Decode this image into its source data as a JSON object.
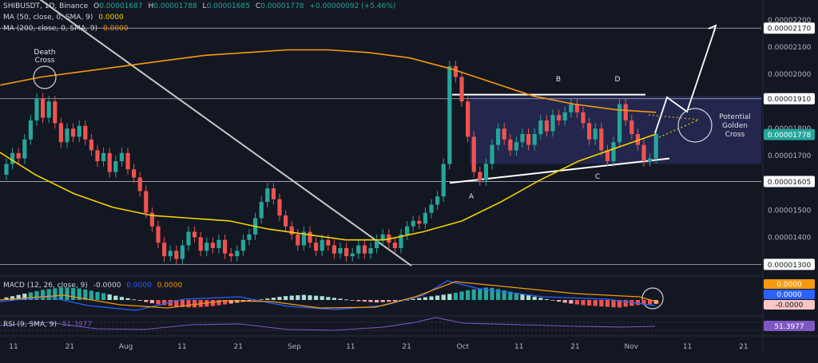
{
  "header": {
    "symbol": "SHIBUSDT, 1D, Binance",
    "o_label": "O",
    "o_value": "0.00001687",
    "h_label": "H",
    "h_value": "0.00001788",
    "l_label": "L",
    "l_value": "0.00001685",
    "c_label": "C",
    "c_value": "0.00001778",
    "change": "+0.00000092 (+5.46%)"
  },
  "ma50": {
    "label": "MA (50, close, 0, SMA, 9)",
    "value": "0.0000",
    "color": "#f5d300"
  },
  "ma200": {
    "label": "MA (200, close, 0, SMA, 9)",
    "value": "0.0000",
    "color": "#f59a0e"
  },
  "macd": {
    "label": "MACD (12, 26, close, 9)",
    "value1": "-0.0000",
    "value2": "0.0000",
    "value3": "0.0000"
  },
  "rsi": {
    "label": "RSI (9, SMA, 9)",
    "value": "51.3977",
    "badge": "51.3977",
    "color": "#7e57c2"
  },
  "annotations": {
    "death_cross": [
      "Death",
      "Cross"
    ],
    "golden_cross": [
      "Potential",
      "Golden",
      "Cross"
    ],
    "points": [
      "A",
      "B",
      "C",
      "D"
    ]
  },
  "colors": {
    "up": "#26a69a",
    "down": "#ef5350",
    "bg": "#131722",
    "rect": "#2a2d5c"
  },
  "chart_data": {
    "type": "candlestick",
    "symbol": "SHIBUSDT",
    "interval": "1D",
    "y_ticks": [
      "0.00002200",
      "0.00002100",
      "0.00002000",
      "0.00001900",
      "0.00001800",
      "0.00001700",
      "0.00001600",
      "0.00001500",
      "0.00001400",
      "0.00001300"
    ],
    "y_axis_badges": [
      {
        "label": "0.00002170",
        "value": 2.17e-05,
        "style": "line"
      },
      {
        "label": "0.00001910",
        "value": 1.91e-05,
        "style": "line"
      },
      {
        "label": "0.00001778",
        "value": 1.778e-05,
        "style": "current"
      },
      {
        "label": "0.00001605",
        "value": 1.605e-05,
        "style": "line"
      },
      {
        "label": "0.00001300",
        "value": 1.3e-05,
        "style": "line"
      }
    ],
    "x_ticks": [
      "11",
      "21",
      "Aug",
      "11",
      "21",
      "Sep",
      "11",
      "21",
      "Oct",
      "11",
      "21",
      "Nov",
      "11",
      "21"
    ],
    "ylim": [
      1.26e-05,
      2.25e-05
    ],
    "series": [
      {
        "name": "MA (50, close, 0, SMA, 9)",
        "color": "#f5d300"
      },
      {
        "name": "MA (200, close, 0, SMA, 9)",
        "color": "#f59a0e"
      }
    ],
    "candles": [
      [
        1.63e-05,
        1.67e-05
      ],
      [
        1.67e-05,
        1.71e-05
      ],
      [
        1.71e-05,
        1.69e-05
      ],
      [
        1.69e-05,
        1.76e-05
      ],
      [
        1.76e-05,
        1.83e-05
      ],
      [
        1.83e-05,
        1.91e-05
      ],
      [
        1.91e-05,
        1.84e-05
      ],
      [
        1.84e-05,
        1.9e-05
      ],
      [
        1.9e-05,
        1.82e-05
      ],
      [
        1.82e-05,
        1.75e-05
      ],
      [
        1.75e-05,
        1.8e-05
      ],
      [
        1.8e-05,
        1.77e-05
      ],
      [
        1.77e-05,
        1.81e-05
      ],
      [
        1.81e-05,
        1.76e-05
      ],
      [
        1.76e-05,
        1.72e-05
      ],
      [
        1.72e-05,
        1.68e-05
      ],
      [
        1.68e-05,
        1.71e-05
      ],
      [
        1.71e-05,
        1.64e-05
      ],
      [
        1.64e-05,
        1.68e-05
      ],
      [
        1.68e-05,
        1.71e-05
      ],
      [
        1.71e-05,
        1.65e-05
      ],
      [
        1.65e-05,
        1.62e-05
      ],
      [
        1.62e-05,
        1.57e-05
      ],
      [
        1.57e-05,
        1.49e-05
      ],
      [
        1.49e-05,
        1.44e-05
      ],
      [
        1.44e-05,
        1.38e-05
      ],
      [
        1.38e-05,
        1.33e-05
      ],
      [
        1.33e-05,
        1.35e-05
      ],
      [
        1.35e-05,
        1.32e-05
      ],
      [
        1.32e-05,
        1.37e-05
      ],
      [
        1.37e-05,
        1.42e-05
      ],
      [
        1.42e-05,
        1.4e-05
      ],
      [
        1.4e-05,
        1.35e-05
      ],
      [
        1.35e-05,
        1.38e-05
      ],
      [
        1.38e-05,
        1.36e-05
      ],
      [
        1.36e-05,
        1.39e-05
      ],
      [
        1.39e-05,
        1.34e-05
      ],
      [
        1.34e-05,
        1.33e-05
      ],
      [
        1.33e-05,
        1.35e-05
      ],
      [
        1.35e-05,
        1.39e-05
      ],
      [
        1.39e-05,
        1.41e-05
      ],
      [
        1.41e-05,
        1.47e-05
      ],
      [
        1.47e-05,
        1.53e-05
      ],
      [
        1.53e-05,
        1.58e-05
      ],
      [
        1.58e-05,
        1.54e-05
      ],
      [
        1.54e-05,
        1.48e-05
      ],
      [
        1.48e-05,
        1.44e-05
      ],
      [
        1.44e-05,
        1.41e-05
      ],
      [
        1.41e-05,
        1.37e-05
      ],
      [
        1.37e-05,
        1.42e-05
      ],
      [
        1.42e-05,
        1.38e-05
      ],
      [
        1.38e-05,
        1.35e-05
      ],
      [
        1.35e-05,
        1.39e-05
      ],
      [
        1.39e-05,
        1.37e-05
      ],
      [
        1.37e-05,
        1.34e-05
      ],
      [
        1.34e-05,
        1.36e-05
      ],
      [
        1.36e-05,
        1.33e-05
      ],
      [
        1.33e-05,
        1.34e-05
      ],
      [
        1.34e-05,
        1.37e-05
      ],
      [
        1.37e-05,
        1.34e-05
      ],
      [
        1.34e-05,
        1.36e-05
      ],
      [
        1.36e-05,
        1.39e-05
      ],
      [
        1.39e-05,
        1.41e-05
      ],
      [
        1.41e-05,
        1.38e-05
      ],
      [
        1.38e-05,
        1.36e-05
      ],
      [
        1.36e-05,
        1.41e-05
      ],
      [
        1.41e-05,
        1.44e-05
      ],
      [
        1.44e-05,
        1.46e-05
      ],
      [
        1.46e-05,
        1.45e-05
      ],
      [
        1.45e-05,
        1.49e-05
      ],
      [
        1.49e-05,
        1.52e-05
      ],
      [
        1.52e-05,
        1.55e-05
      ],
      [
        1.55e-05,
        1.67e-05
      ],
      [
        1.67e-05,
        2.03e-05
      ],
      [
        2.03e-05,
        1.99e-05
      ],
      [
        1.99e-05,
        1.9e-05
      ],
      [
        1.9e-05,
        1.77e-05
      ],
      [
        1.77e-05,
        1.64e-05
      ],
      [
        1.64e-05,
        1.61e-05
      ],
      [
        1.61e-05,
        1.67e-05
      ],
      [
        1.67e-05,
        1.74e-05
      ],
      [
        1.74e-05,
        1.8e-05
      ],
      [
        1.8e-05,
        1.76e-05
      ],
      [
        1.76e-05,
        1.72e-05
      ],
      [
        1.72e-05,
        1.75e-05
      ],
      [
        1.75e-05,
        1.78e-05
      ],
      [
        1.78e-05,
        1.74e-05
      ],
      [
        1.74e-05,
        1.78e-05
      ],
      [
        1.78e-05,
        1.83e-05
      ],
      [
        1.83e-05,
        1.79e-05
      ],
      [
        1.79e-05,
        1.85e-05
      ],
      [
        1.85e-05,
        1.83e-05
      ],
      [
        1.83e-05,
        1.86e-05
      ],
      [
        1.86e-05,
        1.89e-05
      ],
      [
        1.89e-05,
        1.86e-05
      ],
      [
        1.86e-05,
        1.82e-05
      ],
      [
        1.82e-05,
        1.76e-05
      ],
      [
        1.76e-05,
        1.8e-05
      ],
      [
        1.8e-05,
        1.72e-05
      ],
      [
        1.72e-05,
        1.68e-05
      ],
      [
        1.68e-05,
        1.75e-05
      ],
      [
        1.75e-05,
        1.89e-05
      ],
      [
        1.89e-05,
        1.83e-05
      ],
      [
        1.83e-05,
        1.78e-05
      ],
      [
        1.78e-05,
        1.74e-05
      ],
      [
        1.74e-05,
        1.68e-05
      ],
      [
        1.68e-05,
        1.69e-05
      ],
      [
        1.69e-05,
        1.78e-05
      ]
    ],
    "ma50_values": [
      1.82e-05,
      1.72e-05,
      1.63e-05,
      1.56e-05,
      1.51e-05,
      1.48e-05,
      1.47e-05,
      1.46e-05,
      1.43e-05,
      1.41e-05,
      1.39e-05,
      1.39e-05,
      1.42e-05,
      1.46e-05,
      1.53e-05,
      1.61e-05,
      1.68e-05,
      1.73e-05,
      1.78e-05
    ],
    "ma200_values": [
      1.96e-05,
      1.99e-05,
      2.01e-05,
      2.03e-05,
      2.05e-05,
      2.07e-05,
      2.08e-05,
      2.09e-05,
      2.09e-05,
      2.08e-05,
      2.06e-05,
      2.02e-05,
      1.97e-05,
      1.92e-05,
      1.89e-05,
      1.87e-05,
      1.86e-05
    ],
    "macd_hist": [
      0.2,
      0.5,
      0.8,
      1.0,
      0.9,
      0.6,
      0.3,
      0.0,
      -0.3,
      -0.5,
      -0.6,
      -0.5,
      -0.3,
      -0.1,
      0.1,
      0.3,
      0.4,
      0.3,
      0.1,
      -0.1,
      -0.2,
      -0.1,
      0.1,
      0.3,
      0.5,
      0.8,
      1.0,
      0.7,
      0.4,
      0.1,
      -0.2,
      -0.4,
      -0.5,
      -0.6,
      -0.4,
      -0.3
    ]
  }
}
